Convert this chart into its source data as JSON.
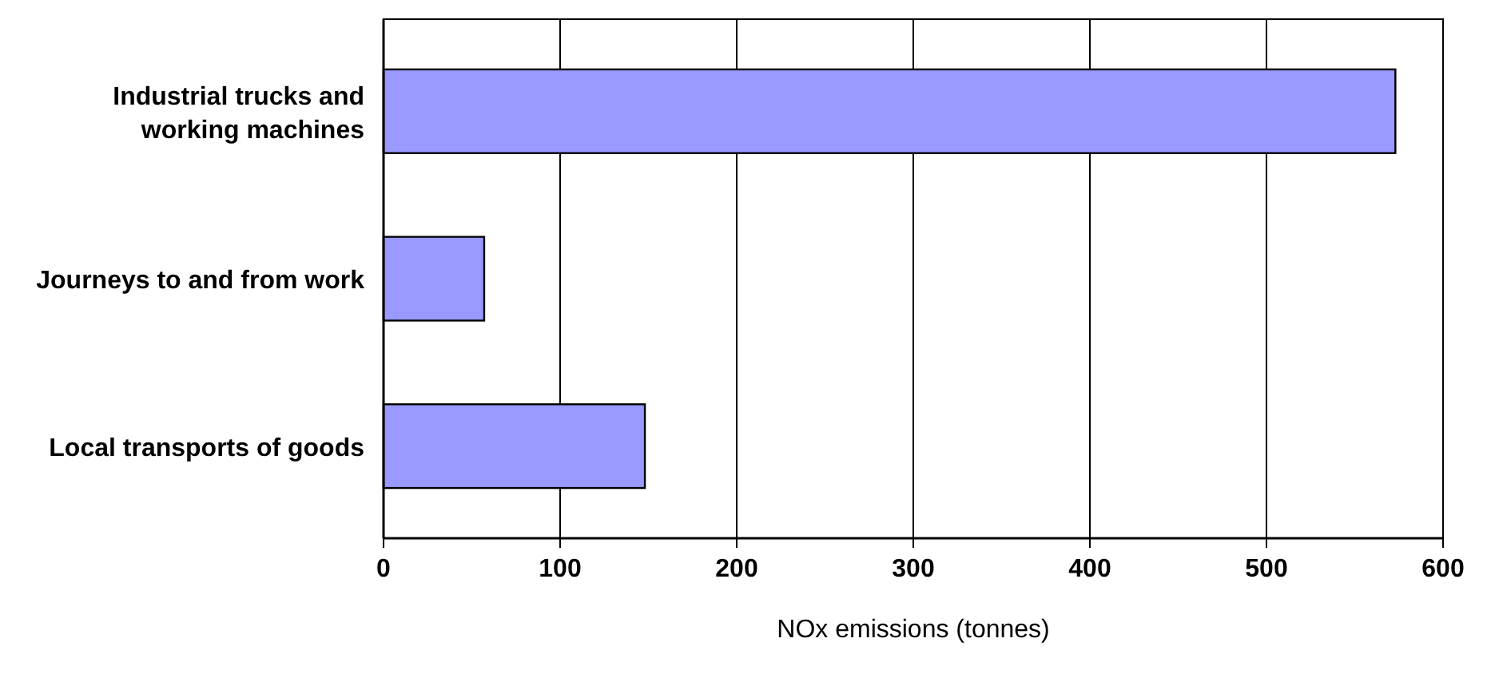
{
  "chart_data": {
    "type": "bar",
    "orientation": "horizontal",
    "xlabel": "NOx emissions (tonnes)",
    "categories": [
      "Industrial trucks and working machines",
      "Journeys to and from work",
      "Local transports of goods"
    ],
    "values": [
      573,
      57,
      148
    ],
    "color": "#9999ff",
    "xlim": [
      0,
      600
    ],
    "xticks": [
      0,
      100,
      200,
      300,
      400,
      500,
      600
    ],
    "grid": "x"
  }
}
